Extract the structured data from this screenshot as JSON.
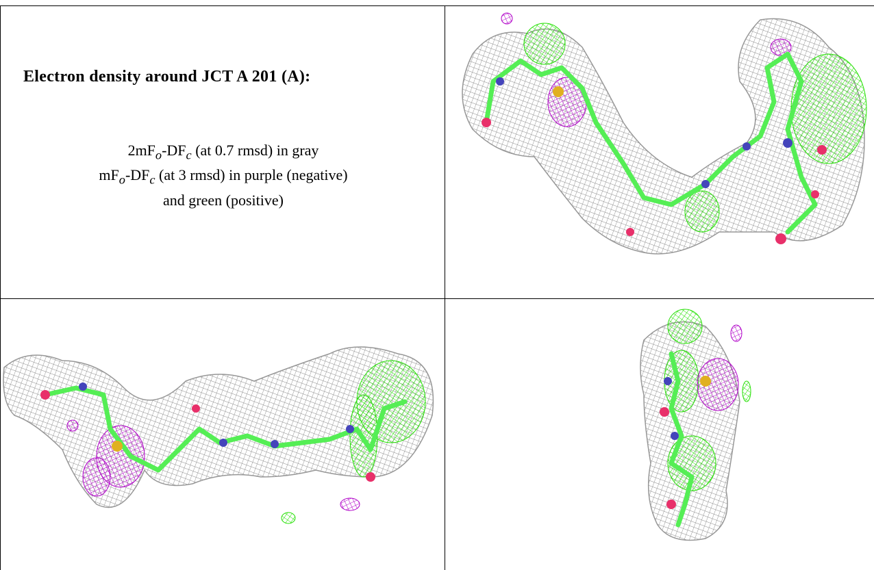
{
  "caption": {
    "title": "Electron density around JCT A 201 (A):",
    "line1_prefix": "2mF",
    "line1_sub1": "o",
    "line1_mid": "-DF",
    "line1_sub2": "c",
    "line1_suffix": " (at 0.7 rmsd) in gray",
    "line2_prefix": "mF",
    "line2_sub1": "o",
    "line2_mid": "-DF",
    "line2_sub2": "c",
    "line2_suffix": " (at 3 rmsd) in purple (negative)",
    "line3": "and green (positive)"
  },
  "colors": {
    "density_2fofc": "#8c8c8c",
    "difference_negative": "#b000c8",
    "difference_positive": "#22e000",
    "carbon_atoms": "#55ee55",
    "nitrogen_atoms": "#4444bb",
    "oxygen_atoms": "#e8306a",
    "sulfur_atoms": "#e0b020",
    "grid_lines": "#000000"
  }
}
